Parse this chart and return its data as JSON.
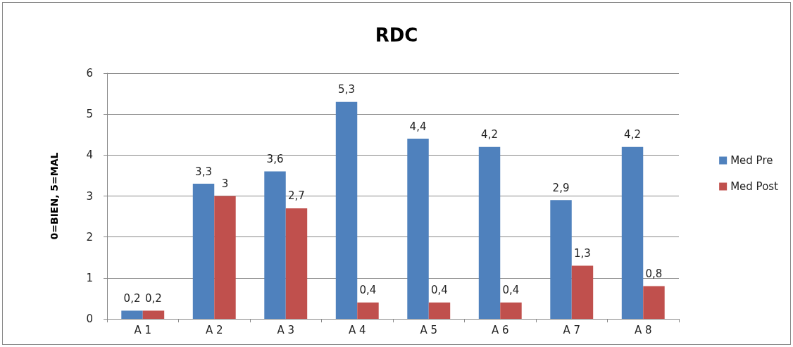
{
  "chart_data": {
    "type": "bar",
    "title": "RDC",
    "ylabel": "0=BIEN, 5=MAL",
    "categories": [
      "A 1",
      "A 2",
      "A 3",
      "A 4",
      "A 5",
      "A 6",
      "A 7",
      "A 8"
    ],
    "series": [
      {
        "name": "Med Pre",
        "color": "#4f81bd",
        "values": [
          0.2,
          3.3,
          3.6,
          5.3,
          4.4,
          4.2,
          2.9,
          4.2
        ],
        "value_labels": [
          "0,2",
          "3,3",
          "3,6",
          "5,3",
          "4,4",
          "4,2",
          "2,9",
          "4,2"
        ]
      },
      {
        "name": "Med Post",
        "color": "#c0504d",
        "values": [
          0.2,
          3,
          2.7,
          0.4,
          0.4,
          0.4,
          1.3,
          0.8
        ],
        "value_labels": [
          "0,2",
          "3",
          "2,7",
          "0,4",
          "0,4",
          "0,4",
          "1,3",
          "0,8"
        ]
      }
    ],
    "ylim": [
      0,
      6
    ],
    "yticks": [
      0,
      1,
      2,
      3,
      4,
      5,
      6
    ],
    "grid": "y",
    "legend": "right"
  }
}
